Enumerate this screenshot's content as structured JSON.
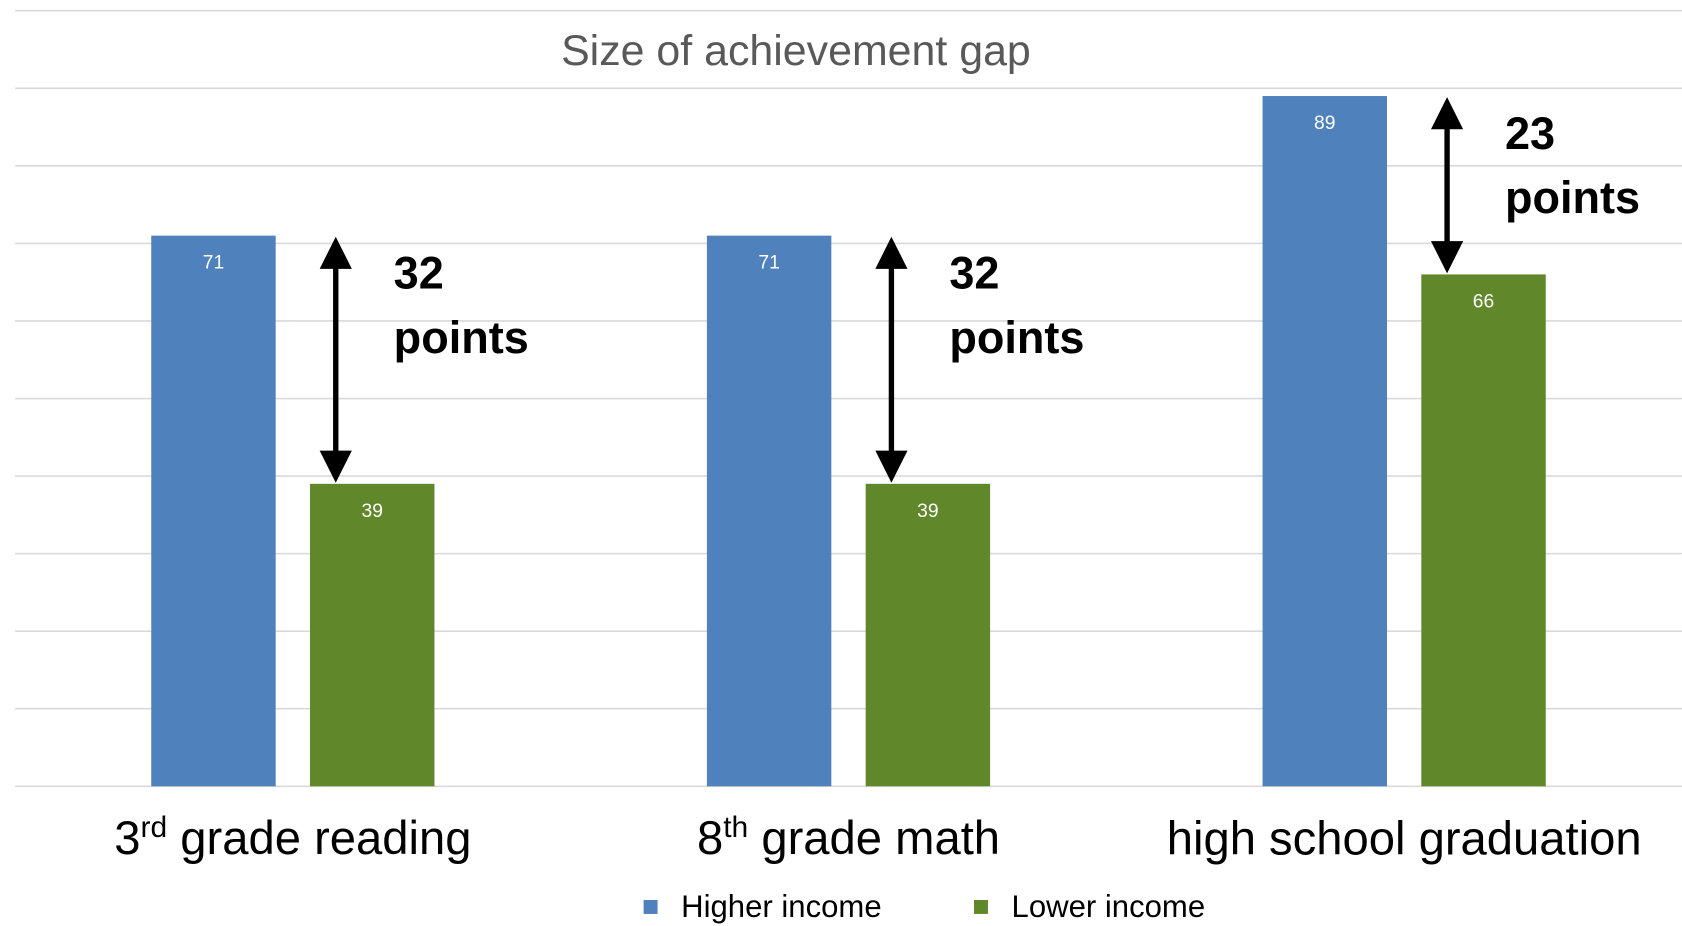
{
  "chart_data": {
    "type": "bar",
    "title": "Size of achievement gap",
    "categories": [
      "3rd grade reading",
      "8th grade math",
      "high school graduation"
    ],
    "series": [
      {
        "name": "Higher income",
        "color": "#4f81bd",
        "values": [
          71,
          71,
          89
        ]
      },
      {
        "name": "Lower income",
        "color": "#608729",
        "values": [
          39,
          39,
          66
        ]
      }
    ],
    "ylim": [
      0,
      100
    ],
    "yticks": [
      0,
      10,
      20,
      30,
      40,
      50,
      60,
      70,
      80,
      90,
      100
    ],
    "grid": true,
    "annotations": [
      "32 points",
      "32 points",
      "23 points"
    ]
  }
}
